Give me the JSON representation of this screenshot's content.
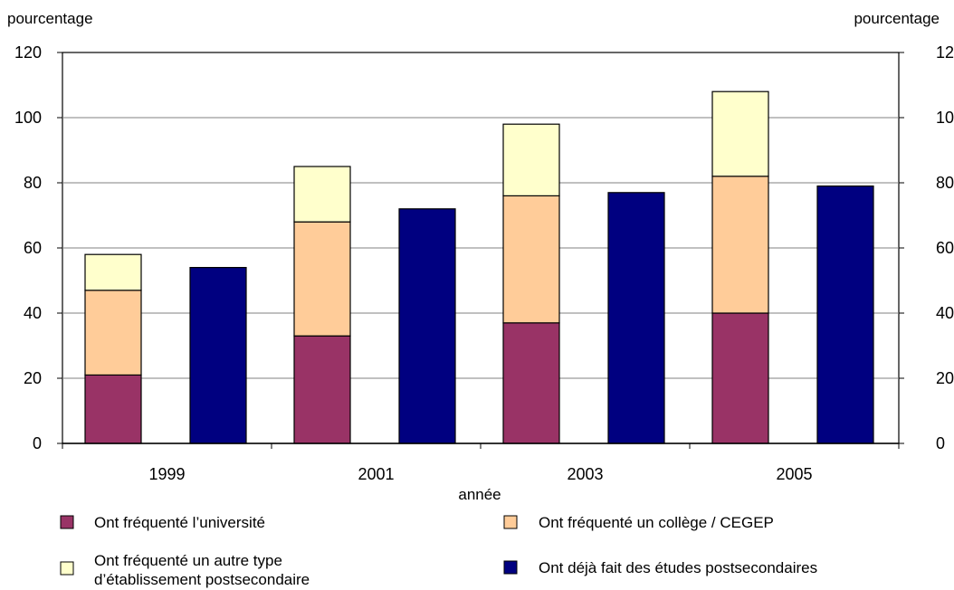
{
  "chart_data": {
    "type": "bar",
    "stacked_group": true,
    "title": "",
    "ylabel_left": "pourcentage",
    "ylabel_right": "pourcentage",
    "xlabel": "année",
    "categories": [
      "1999",
      "2001",
      "2003",
      "2005"
    ],
    "ylim": [
      0,
      120
    ],
    "yticks": [
      0,
      20,
      40,
      60,
      80,
      100,
      120
    ],
    "grid": true,
    "legend_position": "bottom",
    "stacked_series": [
      {
        "name": "Ont fréquenté l’université",
        "color": "#993366",
        "values": [
          21,
          33,
          37,
          40
        ]
      },
      {
        "name": "Ont fréquenté un collège / CEGEP",
        "color": "#FFCC99",
        "values": [
          26,
          35,
          39,
          42
        ]
      },
      {
        "name": "Ont fréquenté un autre type d’établissement postsecondaire",
        "color": "#FFFFCC",
        "values": [
          11,
          17,
          22,
          26
        ]
      }
    ],
    "single_series": {
      "name": "Ont déjà fait des études postsecondaires",
      "color": "#000080",
      "values": [
        54,
        72,
        77,
        79
      ]
    }
  },
  "legend": {
    "items": [
      {
        "label": "Ont fréquenté l’université",
        "color": "#993366"
      },
      {
        "label": "Ont fréquenté un collège / CEGEP",
        "color": "#FFCC99"
      },
      {
        "label_lines": [
          "Ont fréquenté un autre type",
          "d’établissement postsecondaire"
        ],
        "color": "#FFFFCC"
      },
      {
        "label": "Ont déjà fait des études postsecondaires",
        "color": "#000080"
      }
    ]
  }
}
